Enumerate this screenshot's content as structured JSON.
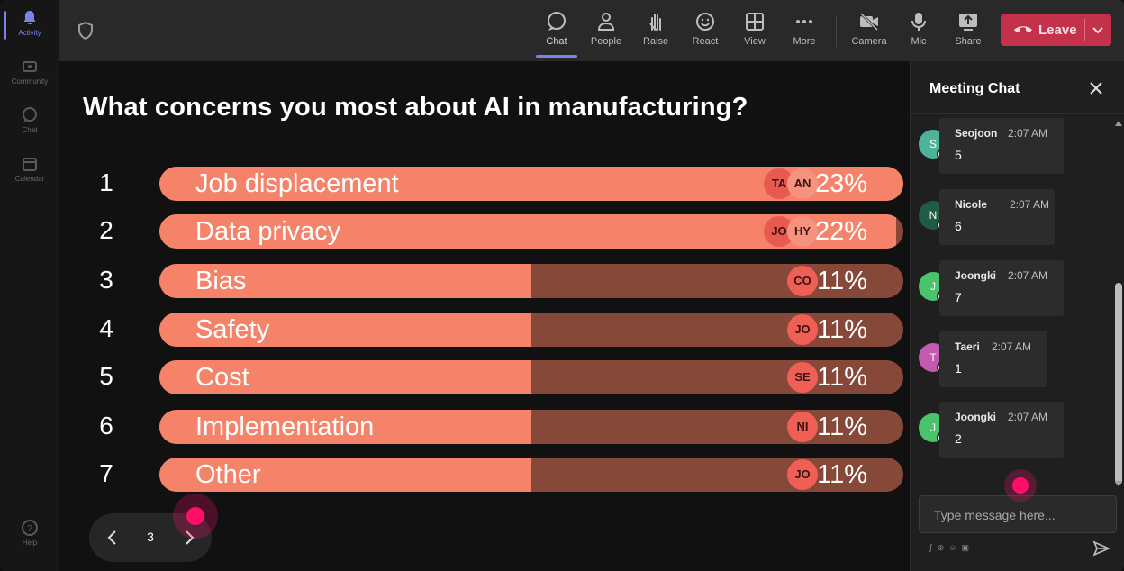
{
  "rail": {
    "items": [
      {
        "label": "Activity",
        "icon": "bell-icon",
        "active": true
      },
      {
        "label": "Community",
        "icon": "community-icon"
      },
      {
        "label": "Chat",
        "icon": "chat-icon"
      },
      {
        "label": "Calendar",
        "icon": "calendar-icon"
      }
    ],
    "help": {
      "label": "Help",
      "icon": "help-icon"
    }
  },
  "toolbar": {
    "items": [
      {
        "label": "Chat",
        "icon": "chat-icon",
        "active": true
      },
      {
        "label": "People",
        "icon": "people-icon"
      },
      {
        "label": "Raise",
        "icon": "raise-hand-icon"
      },
      {
        "label": "React",
        "icon": "react-icon"
      },
      {
        "label": "View",
        "icon": "view-icon"
      },
      {
        "label": "More",
        "icon": "more-icon"
      },
      {
        "label": "Camera",
        "icon": "camera-off-icon"
      },
      {
        "label": "Mic",
        "icon": "mic-icon"
      },
      {
        "label": "Share",
        "icon": "share-icon"
      }
    ],
    "leave_label": "Leave"
  },
  "poll": {
    "question": "What concerns you most about AI in manufacturing?",
    "options": [
      {
        "num": "1",
        "label": "Job displacement",
        "percent": "23%",
        "fill": 1.0,
        "avatars": [
          "TA",
          "AN"
        ]
      },
      {
        "num": "2",
        "label": "Data privacy",
        "percent": "22%",
        "fill": 0.99,
        "avatars": [
          "JO",
          "HY"
        ]
      },
      {
        "num": "3",
        "label": "Bias",
        "percent": "11%",
        "fill": 0.5,
        "avatars": [
          "CO"
        ]
      },
      {
        "num": "4",
        "label": "Safety",
        "percent": "11%",
        "fill": 0.5,
        "avatars": [
          "JO"
        ]
      },
      {
        "num": "5",
        "label": "Cost",
        "percent": "11%",
        "fill": 0.5,
        "avatars": [
          "SE"
        ]
      },
      {
        "num": "6",
        "label": "Implementation",
        "percent": "11%",
        "fill": 0.5,
        "avatars": [
          "NI"
        ]
      },
      {
        "num": "7",
        "label": "Other",
        "percent": "11%",
        "fill": 0.5,
        "avatars": [
          "JO"
        ]
      }
    ],
    "page": "3"
  },
  "chat": {
    "title": "Meeting Chat",
    "messages": [
      {
        "initial": "S",
        "name": "Seojoon",
        "time": "2:07 AM",
        "text": "5",
        "color": "#4fb39a"
      },
      {
        "initial": "N",
        "name": "Nicole",
        "time": "2:07 AM",
        "text": "6",
        "color": "#1f5c43"
      },
      {
        "initial": "J",
        "name": "Joongki",
        "time": "2:07 AM",
        "text": "7",
        "color": "#49c46b"
      },
      {
        "initial": "T",
        "name": "Taeri",
        "time": "2:07 AM",
        "text": "1",
        "color": "#c35ab0"
      },
      {
        "initial": "J",
        "name": "Joongki",
        "time": "2:07 AM",
        "text": "2",
        "color": "#49c46b"
      }
    ],
    "placeholder": "Type message here..."
  },
  "colors": {
    "bar_fill": "#f5836a",
    "bar_track": "#864838",
    "leave": "#c4314b",
    "accent": "#7b83eb",
    "cursor": "#ff0f6a"
  }
}
